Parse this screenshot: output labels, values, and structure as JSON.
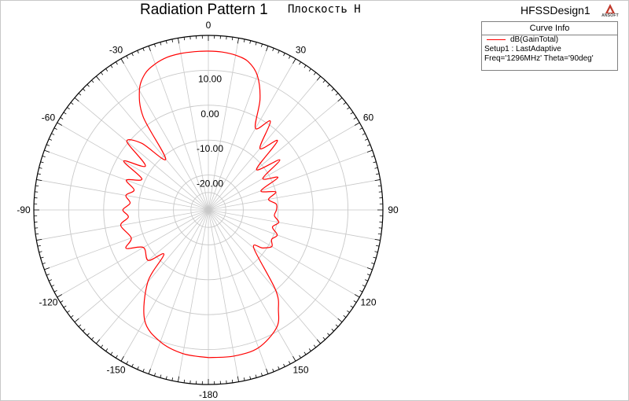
{
  "header": {
    "title": "Radiation Pattern 1",
    "subtitle": "Плоскость H",
    "design_name": "HFSSDesign1",
    "logo_text": "ANSOFT"
  },
  "legend": {
    "header": "Curve Info",
    "series_label": "dB(GainTotal)",
    "setup_line": "Setup1 : LastAdaptive",
    "freq_line": "Freq='1296MHz' Theta='90deg'"
  },
  "colors": {
    "curve": "#ff0000",
    "grid": "#c8c8c8",
    "outer_circle": "#000000"
  },
  "chart_data": {
    "type": "polar",
    "title": "Radiation Pattern 1",
    "subtitle": "Плоскость H",
    "r_ticks": [
      10,
      0,
      -10,
      -20
    ],
    "r_tick_labels": [
      "10.00",
      "0.00",
      "-10.00",
      "-20.00"
    ],
    "r_range": [
      -30,
      20
    ],
    "angular_ticks": [
      0,
      30,
      60,
      90,
      120,
      150,
      180,
      -150,
      -120,
      -90,
      -60,
      -30
    ],
    "angular_tick_labels": [
      "0",
      "30",
      "60",
      "90",
      "120",
      "150",
      "-180",
      "-150",
      "-120",
      "-90",
      "-60",
      "-30"
    ],
    "angle_zero": "top",
    "angle_direction": "clockwise",
    "grid": true,
    "series": [
      {
        "name": "dB(GainTotal)",
        "angles": [
          -180,
          -170,
          -160,
          -150,
          -140,
          -135,
          -130,
          -120,
          -115,
          -110,
          -100,
          -95,
          -90,
          -85,
          -80,
          -75,
          -70,
          -65,
          -60,
          -55,
          -50,
          -45,
          -40,
          -35,
          -30,
          -25,
          -20,
          -15,
          -10,
          -5,
          0,
          5,
          10,
          15,
          20,
          25,
          30,
          35,
          40,
          45,
          50,
          55,
          60,
          65,
          70,
          75,
          80,
          85,
          90,
          95,
          100,
          105,
          110,
          115,
          120,
          125,
          130,
          140,
          145,
          150,
          160,
          170,
          180
        ],
        "values": [
          12.3,
          11.8,
          10.2,
          6.5,
          -3.0,
          -12.0,
          -7.5,
          -8.5,
          -4.0,
          -6.5,
          -4.5,
          -7.0,
          -5.5,
          -7.5,
          -6.0,
          -8.0,
          -5.0,
          -9.0,
          -2.0,
          -8.0,
          0.5,
          -3.0,
          -11.0,
          2.5,
          9.5,
          13.0,
          14.5,
          15.3,
          15.5,
          15.5,
          15.5,
          15.4,
          15.0,
          14.0,
          11.0,
          5.0,
          -3.0,
          1.0,
          -7.0,
          -2.0,
          -12.0,
          -5.0,
          -12.0,
          -8.0,
          -14.0,
          -10.0,
          -12.5,
          -10.5,
          -10.5,
          -11.0,
          -9.5,
          -11.0,
          -9.0,
          -10.0,
          -9.0,
          -11.0,
          -13.0,
          0.0,
          5.0,
          9.0,
          12.0,
          12.5,
          12.3
        ]
      }
    ]
  }
}
